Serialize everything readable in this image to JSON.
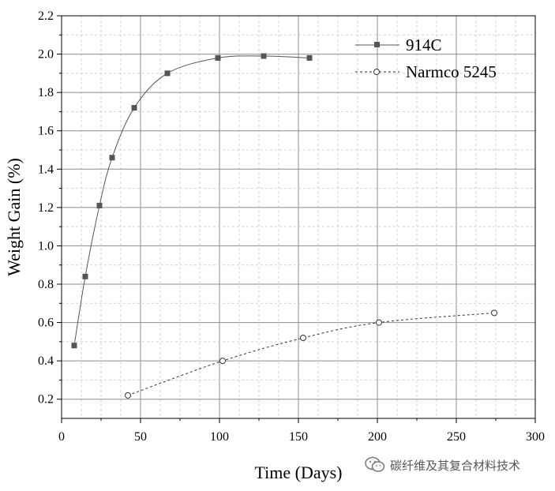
{
  "chart_data": {
    "type": "line",
    "xlabel": "Time (Days)",
    "ylabel": "Weight Gain (%)",
    "xlim": [
      0,
      300
    ],
    "ylim": [
      0.1,
      2.2
    ],
    "xticks": [
      0,
      50,
      100,
      150,
      200,
      250,
      300
    ],
    "yticks": [
      0.2,
      0.4,
      0.6,
      0.8,
      1.0,
      1.2,
      1.4,
      1.6,
      1.8,
      2.0,
      2.2
    ],
    "xtick_labels": [
      "0",
      "50",
      "100",
      "150",
      "200",
      "250",
      "300"
    ],
    "ytick_labels": [
      "0.2",
      "0.4",
      "0.6",
      "0.8",
      "1.0",
      "1.2",
      "1.4",
      "1.6",
      "1.8",
      "2.0",
      "2.2"
    ],
    "grid": true,
    "legend_position": "top-right",
    "series": [
      {
        "name": "914C",
        "marker": "filled-square",
        "line_style": "solid",
        "color": "#555555",
        "x": [
          8,
          15,
          24,
          32,
          46,
          67,
          99,
          128,
          157
        ],
        "y": [
          0.48,
          0.84,
          1.21,
          1.46,
          1.72,
          1.9,
          1.98,
          1.99,
          1.98
        ]
      },
      {
        "name": "Narmco 5245",
        "marker": "open-circle",
        "line_style": "dashed",
        "color": "#333333",
        "x": [
          42,
          102,
          153,
          201,
          274
        ],
        "y": [
          0.22,
          0.4,
          0.52,
          0.6,
          0.65
        ]
      }
    ]
  },
  "watermark": {
    "text": "碳纤维及其复合材料技术",
    "icon": "wechat-icon"
  }
}
